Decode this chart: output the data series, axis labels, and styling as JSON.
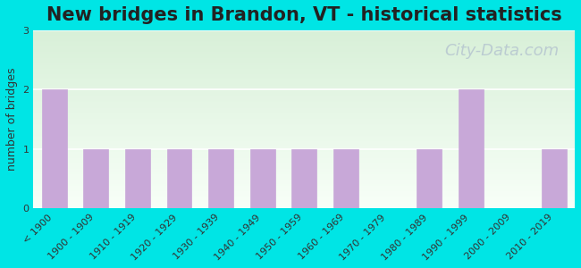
{
  "title": "New bridges in Brandon, VT - historical statistics",
  "categories": [
    "< 1900",
    "1900 - 1909",
    "1910 - 1919",
    "1920 - 1929",
    "1930 - 1939",
    "1940 - 1949",
    "1950 - 1959",
    "1960 - 1969",
    "1970 - 1979",
    "1980 - 1989",
    "1990 - 1999",
    "2000 - 2009",
    "2010 - 2019"
  ],
  "values": [
    2,
    1,
    1,
    1,
    1,
    1,
    1,
    1,
    0,
    1,
    2,
    0,
    1
  ],
  "bar_color": "#c8a8d8",
  "bar_edge_color": "#c8a8d8",
  "background_color": "#00e5e5",
  "plot_bg_top": "#d8f0d8",
  "plot_bg_bottom": "#f8fff8",
  "ylabel": "number of bridges",
  "ylim": [
    0,
    3
  ],
  "yticks": [
    0,
    1,
    2,
    3
  ],
  "title_fontsize": 15,
  "axis_label_fontsize": 9,
  "tick_fontsize": 8,
  "watermark_text": "City-Data.com",
  "watermark_color": "#b8c8d0",
  "watermark_fontsize": 13
}
